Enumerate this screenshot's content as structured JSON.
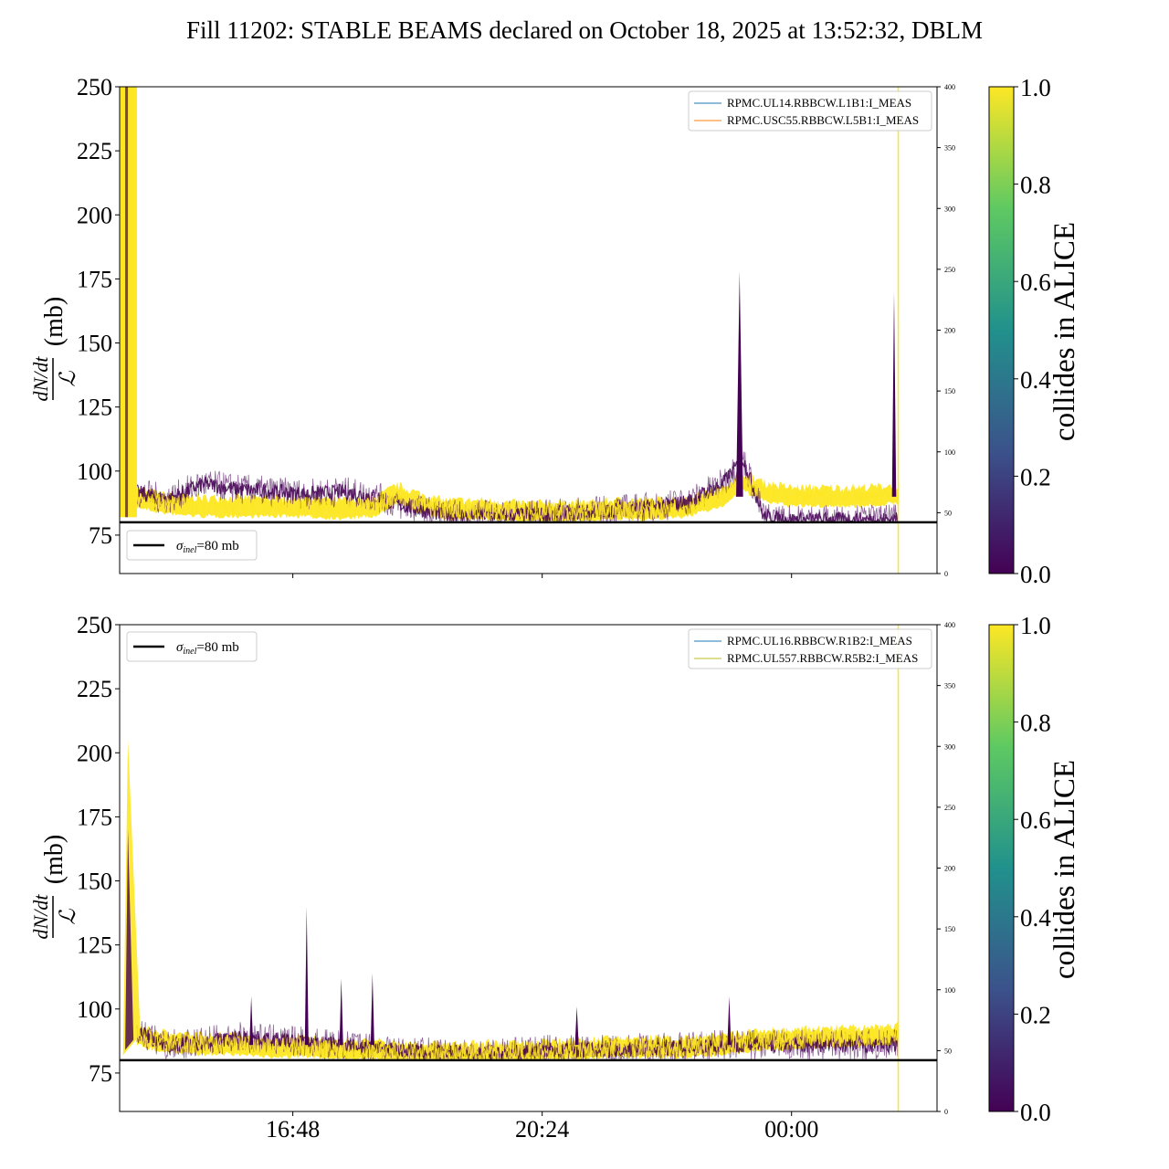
{
  "figure": {
    "title": "Fill 11202: STABLE BEAMS declared on October 18, 2025 at 13:52:32, DBLM"
  },
  "colors": {
    "viridis_0": "#440154",
    "viridis_025": "#3b528b",
    "viridis_05": "#21918c",
    "viridis_075": "#5ec962",
    "viridis_1": "#fde725",
    "reference_line": "#000000",
    "current_b1_left": "#1f77b4",
    "current_b1_right": "#ff7f0e",
    "current_b2_left": "#1f77b4",
    "current_b2_right": "#bcbd22"
  },
  "chart_data": [
    {
      "type": "line",
      "panel": "top",
      "ylabel_fraction": {
        "numerator": "dN/dt",
        "denominator": "ℒ",
        "unit": "(mb)"
      },
      "ylim": [
        60,
        250
      ],
      "yticks": [
        75,
        100,
        125,
        150,
        175,
        200,
        225,
        250
      ],
      "right_axis": {
        "ylim": [
          0,
          400
        ],
        "ticks": [
          0,
          50,
          100,
          150,
          200,
          250,
          300,
          350,
          400
        ]
      },
      "x_tick_labels": [],
      "legend_series": [
        {
          "name": "RPMC.UL14.RBBCW.L1B1:I_MEAS",
          "color": "#1f77b4"
        },
        {
          "name": "RPMC.USC55.RBBCW.L5B1:I_MEAS",
          "color": "#ff7f0e"
        }
      ],
      "reference_line": {
        "value": 80,
        "label_symbol": "σ",
        "label_sub": "inel",
        "label_rest": "=80 mb"
      },
      "reference_legend_position": "lower-left",
      "series_legend_position": "upper-right",
      "hours": [
        14.3,
        14.5,
        14.8,
        15.0,
        15.5,
        16.0,
        16.5,
        17.0,
        17.5,
        18.0,
        18.3,
        18.8,
        19.0,
        19.5,
        20.0,
        20.5,
        21.0,
        21.5,
        22.0,
        22.5,
        23.0,
        23.3,
        23.6,
        24.0,
        24.5,
        25.0,
        25.5
      ],
      "base_yellow": [
        250,
        90,
        88,
        87,
        86,
        86,
        86,
        86,
        85,
        86,
        91,
        86,
        85,
        85,
        84,
        84,
        84,
        85,
        85,
        86,
        90,
        96,
        92,
        90,
        90,
        90,
        91
      ],
      "base_purple": [
        250,
        92,
        90,
        89,
        95,
        93,
        92,
        91,
        92,
        90,
        87,
        84,
        83,
        83,
        83,
        83,
        84,
        85,
        86,
        88,
        95,
        105,
        82,
        81,
        81,
        81,
        81
      ],
      "colorbar": {
        "label": "collides in ALICE",
        "ticks": [
          0.0,
          0.2,
          0.4,
          0.6,
          0.8,
          1.0
        ],
        "range": [
          0,
          1
        ]
      }
    },
    {
      "type": "line",
      "panel": "bottom",
      "ylabel_fraction": {
        "numerator": "dN/dt",
        "denominator": "ℒ",
        "unit": "(mb)"
      },
      "ylim": [
        60,
        250
      ],
      "yticks": [
        75,
        100,
        125,
        150,
        175,
        200,
        225,
        250
      ],
      "right_axis": {
        "ylim": [
          0,
          400
        ],
        "ticks": [
          0,
          50,
          100,
          150,
          200,
          250,
          300,
          350,
          400
        ]
      },
      "x_tick_labels": [
        "16:48",
        "20:24",
        "00:00"
      ],
      "x_tick_hours": [
        16.8,
        20.4,
        24.0
      ],
      "legend_series": [
        {
          "name": "RPMC.UL16.RBBCW.R1B2:I_MEAS",
          "color": "#1f77b4"
        },
        {
          "name": "RPMC.UL557.RBBCW.R5B2:I_MEAS",
          "color": "#bcbd22"
        }
      ],
      "reference_line": {
        "value": 80,
        "label_symbol": "σ",
        "label_sub": "inel",
        "label_rest": "=80 mb"
      },
      "reference_legend_position": "upper-left",
      "series_legend_position": "upper-right",
      "hours": [
        14.3,
        14.5,
        14.8,
        15.0,
        15.5,
        16.0,
        16.5,
        17.0,
        17.5,
        18.0,
        18.3,
        18.8,
        19.0,
        19.5,
        20.0,
        20.5,
        21.0,
        21.5,
        22.0,
        22.5,
        23.0,
        23.3,
        23.6,
        24.0,
        24.5,
        25.0,
        25.5
      ],
      "base_yellow": [
        165,
        90,
        88,
        87,
        86,
        86,
        85,
        85,
        84,
        84,
        83,
        83,
        83,
        83,
        83,
        84,
        84,
        85,
        85,
        85,
        86,
        87,
        88,
        88,
        89,
        89,
        90
      ],
      "base_purple": [
        150,
        92,
        88,
        86,
        87,
        89,
        88,
        87,
        86,
        85,
        84,
        83,
        83,
        83,
        83,
        84,
        84,
        84,
        85,
        85,
        86,
        86,
        86,
        86,
        86,
        86,
        86
      ],
      "colorbar": {
        "label": "collides in ALICE",
        "ticks": [
          0.0,
          0.2,
          0.4,
          0.6,
          0.8,
          1.0
        ],
        "range": [
          0,
          1
        ]
      }
    }
  ]
}
